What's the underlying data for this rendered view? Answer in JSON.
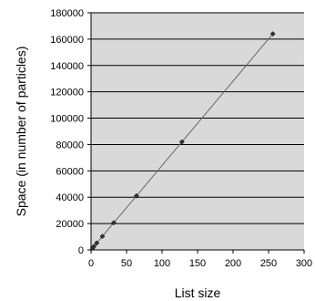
{
  "chart_data": {
    "type": "line",
    "title": "",
    "xlabel": "List size",
    "ylabel": "Space (in number of particles)",
    "xlim": [
      0,
      300
    ],
    "ylim": [
      0,
      180000
    ],
    "xticks": [
      0,
      50,
      100,
      150,
      200,
      250,
      300
    ],
    "yticks": [
      0,
      20000,
      40000,
      60000,
      80000,
      100000,
      120000,
      140000,
      160000,
      180000
    ],
    "grid": "horizontal",
    "plot_background": "#d9d9d9",
    "line_color": "#666666",
    "marker_color": "#333333",
    "series": [
      {
        "x": [
          2,
          4,
          8,
          16,
          32,
          64,
          128,
          256
        ],
        "y": [
          1300,
          2600,
          5200,
          10300,
          20600,
          41000,
          82000,
          164000
        ]
      }
    ]
  }
}
